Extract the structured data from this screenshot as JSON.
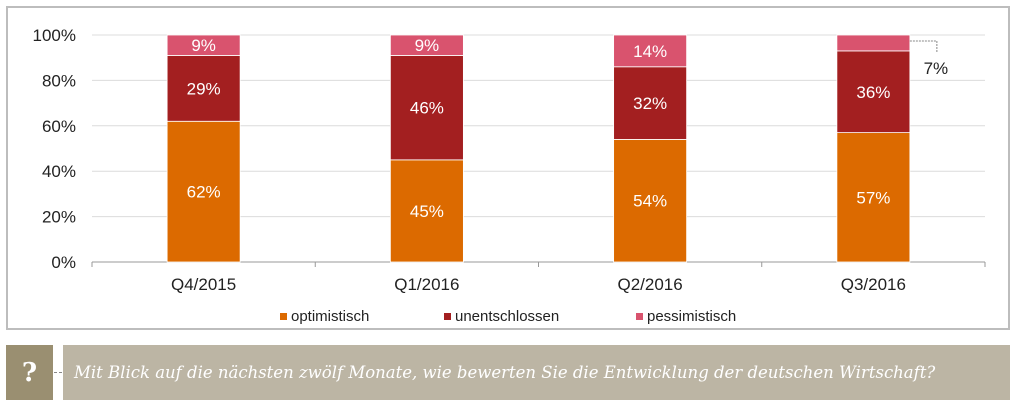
{
  "chart_data": {
    "type": "bar",
    "stacked": true,
    "title": "",
    "xlabel": "",
    "ylabel": "",
    "ylim": [
      0,
      100
    ],
    "yticks": [
      "0%",
      "20%",
      "40%",
      "60%",
      "80%",
      "100%"
    ],
    "ytick_values": [
      0,
      20,
      40,
      60,
      80,
      100
    ],
    "grid": true,
    "categories": [
      "Q4/2015",
      "Q1/2016",
      "Q2/2016",
      "Q3/2016"
    ],
    "series": [
      {
        "name": "optimistisch",
        "color": "#dc6a00",
        "values": [
          62,
          45,
          54,
          57
        ],
        "labels": [
          "62%",
          "45%",
          "54%",
          "57%"
        ]
      },
      {
        "name": "unentschlossen",
        "color": "#a31f20",
        "values": [
          29,
          46,
          32,
          36
        ],
        "labels": [
          "29%",
          "46%",
          "32%",
          "36%"
        ]
      },
      {
        "name": "pessimistisch",
        "color": "#d9536e",
        "values": [
          9,
          9,
          14,
          7
        ],
        "labels": [
          "9%",
          "9%",
          "14%",
          "7%"
        ]
      }
    ],
    "callout": {
      "category": "Q3/2016",
      "series": "pessimistisch",
      "label": "7%"
    },
    "legend_position": "bottom"
  },
  "legend": [
    {
      "label": "optimistisch",
      "color": "#dc6a00"
    },
    {
      "label": "unentschlossen",
      "color": "#a31f20"
    },
    {
      "label": "pessimistisch",
      "color": "#d9536e"
    }
  ],
  "question": {
    "icon": "?",
    "text": "Mit Blick auf die nächsten zwölf Monate, wie bewerten Sie die Entwicklung der deutschen Wirtschaft?"
  }
}
